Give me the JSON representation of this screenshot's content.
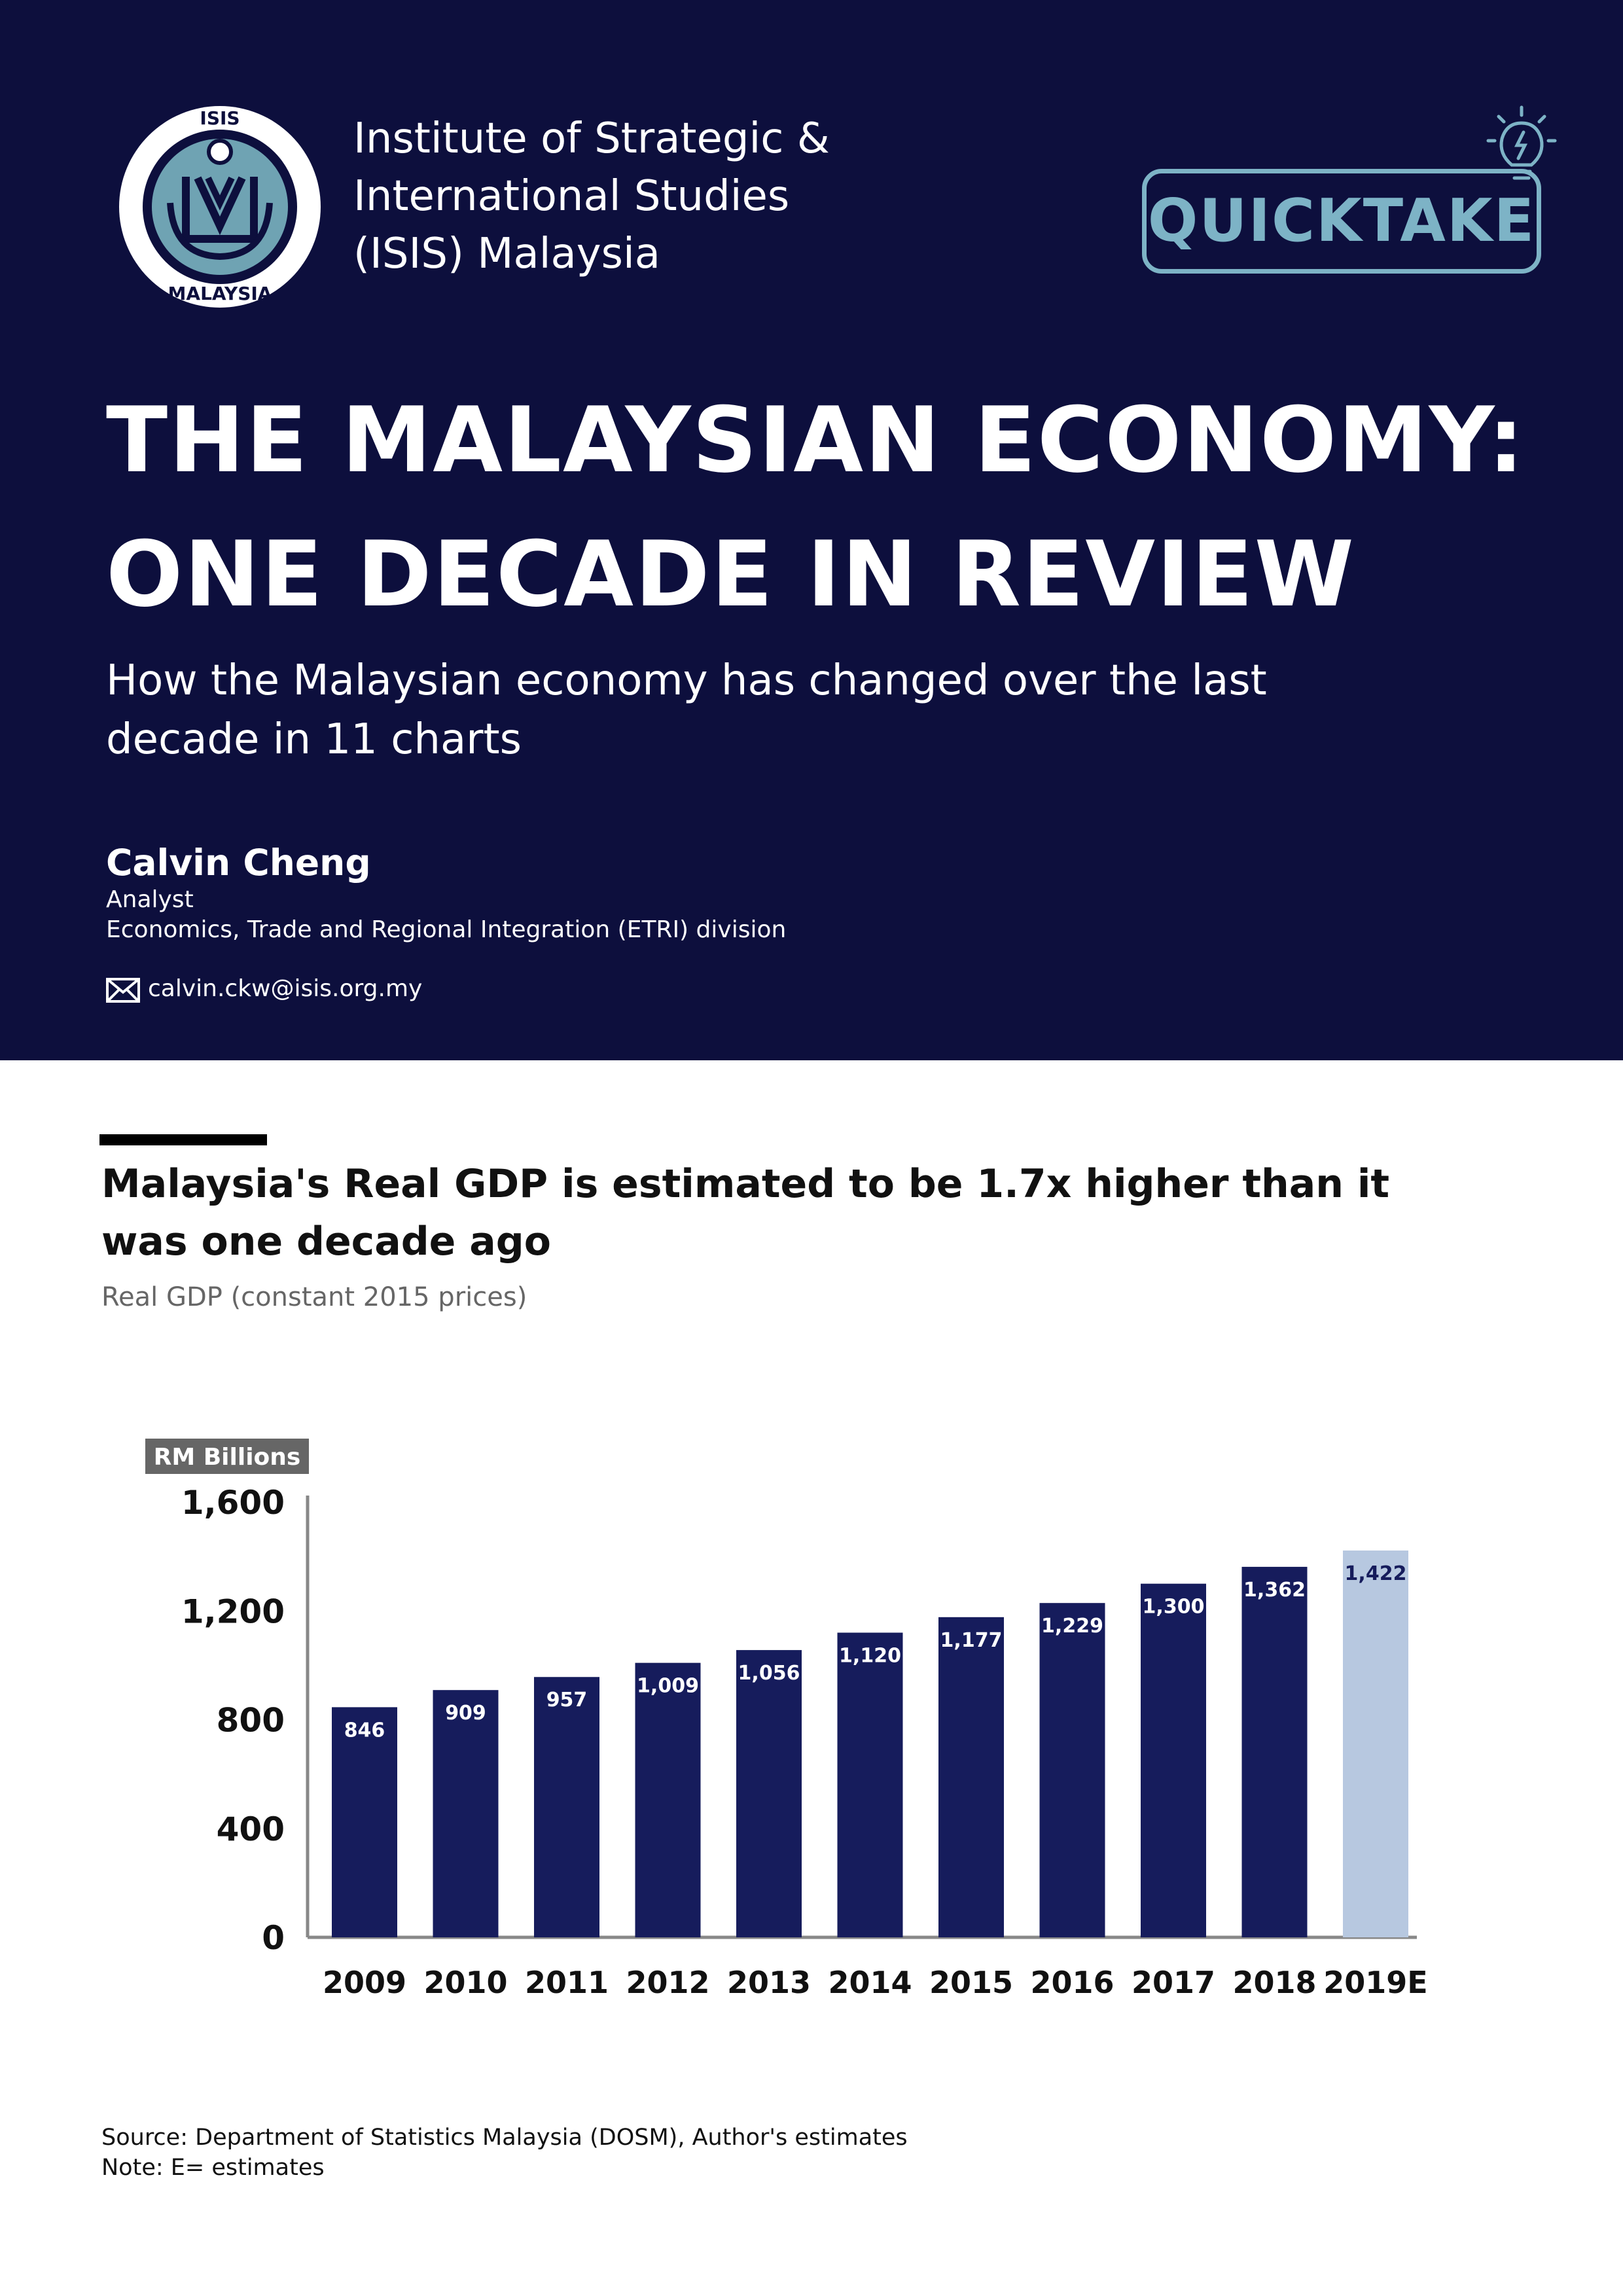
{
  "header": {
    "logo": {
      "top_text": "ISIS",
      "bottom_text": "MALAYSIA",
      "colors": {
        "ring": "#0d0f3d",
        "inner": "#6fa3b3"
      }
    },
    "institute_lines": [
      "Institute of Strategic &",
      "International Studies",
      "(ISIS) Malaysia"
    ],
    "badge": {
      "label": "QUICKTAKE",
      "icon": "lightbulb-icon",
      "color": "#7db3c6"
    },
    "title_lines": [
      "THE MALAYSIAN ECONOMY:",
      "ONE DECADE IN REVIEW"
    ],
    "subtitle_lines": [
      "How the Malaysian economy has changed over the last",
      "decade in 11 charts"
    ],
    "author": {
      "name": "Calvin Cheng",
      "role": "Analyst",
      "division": "Economics, Trade and Regional Integration (ETRI) division",
      "email": "calvin.ckw@isis.org.my",
      "email_icon": "envelope-icon"
    },
    "background_color": "#0d0f3d"
  },
  "chart_section": {
    "title_lines": [
      "Malaysia's Real GDP is estimated to be 1.7x higher than it",
      "was one decade ago"
    ],
    "subtitle": "Real GDP (constant 2015 prices)",
    "source": "Source: Department of Statistics Malaysia (DOSM), Author's estimates",
    "note": "Note: E= estimates"
  },
  "chart_data": {
    "type": "bar",
    "title": "Malaysia's Real GDP is estimated to be 1.7x higher than it was one decade ago",
    "subtitle": "Real GDP (constant 2015 prices)",
    "xlabel": "",
    "ylabel": "RM Billions",
    "ylim": [
      0,
      1600
    ],
    "yticks": [
      0,
      400,
      800,
      1200,
      1600
    ],
    "ytick_labels": [
      "0",
      "400",
      "800",
      "1,200",
      "1,600"
    ],
    "categories": [
      "2009",
      "2010",
      "2011",
      "2012",
      "2013",
      "2014",
      "2015",
      "2016",
      "2017",
      "2018",
      "2019E"
    ],
    "values": [
      846,
      909,
      957,
      1009,
      1056,
      1120,
      1177,
      1229,
      1300,
      1362,
      1422
    ],
    "value_labels": [
      "846",
      "909",
      "957",
      "1,009",
      "1,056",
      "1,120",
      "1,177",
      "1,229",
      "1,300",
      "1,362",
      "1,422"
    ],
    "estimated": [
      false,
      false,
      false,
      false,
      false,
      false,
      false,
      false,
      false,
      false,
      true
    ],
    "grid": false,
    "legend": "none",
    "colors": {
      "actual": "#161c5c",
      "estimate": "#b7c8e0",
      "actual_label": "#ffffff",
      "estimate_label": "#161c5c",
      "ylabel_badge": "#666666"
    }
  }
}
